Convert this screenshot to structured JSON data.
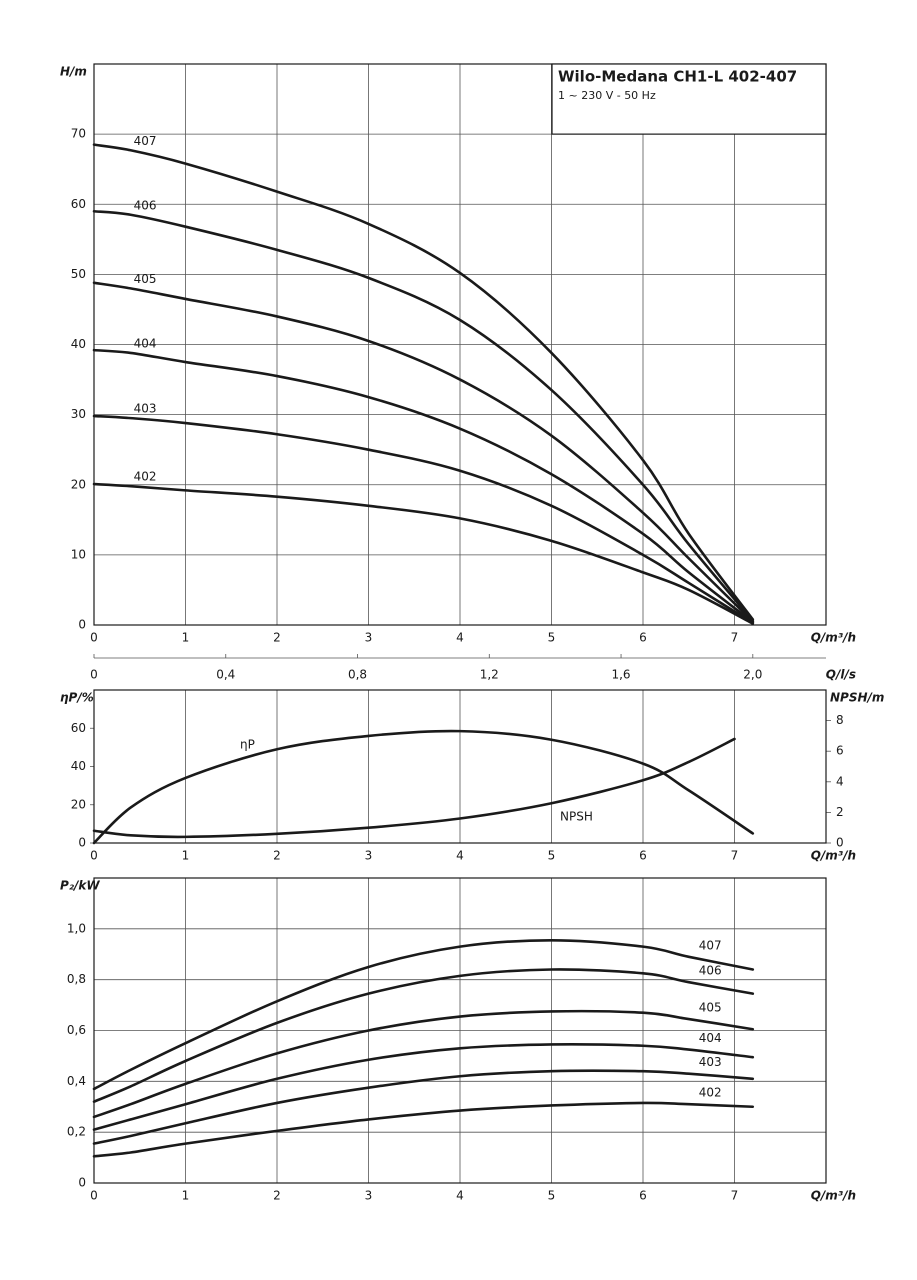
{
  "chart_data": [
    {
      "type": "line",
      "title": "Wilo-Medana CH1-L 402-407",
      "subtitle": "1 ~ 230 V - 50 Hz",
      "ylabel": "H/m",
      "xlabel": "Q/m³/h",
      "x2label": "Q/l/s",
      "xlim": [
        0,
        8
      ],
      "xticks": [
        0,
        1,
        2,
        3,
        4,
        5,
        6,
        7
      ],
      "x2lim": [
        0,
        2.2222
      ],
      "x2ticks": [
        0,
        {
          "value": 0.4,
          "label": "0,4"
        },
        {
          "value": 0.8,
          "label": "0,8"
        },
        {
          "value": 1.2,
          "label": "1,2"
        },
        {
          "value": 1.6,
          "label": "1,6"
        },
        {
          "value": 2.0,
          "label": "2,0"
        }
      ],
      "ylim": [
        0,
        80
      ],
      "yticks": [
        0,
        10,
        20,
        30,
        40,
        50,
        60,
        70
      ],
      "grid": "both",
      "color": "#1a1a1a",
      "series": [
        {
          "name": "407",
          "x": [
            0,
            0.4,
            1,
            2,
            3,
            4,
            5,
            6,
            6.5,
            7.2
          ],
          "values": [
            68.5,
            67.7,
            65.8,
            61.8,
            57.2,
            50.2,
            38.8,
            23.5,
            13,
            0.8
          ]
        },
        {
          "name": "406",
          "x": [
            0,
            0.4,
            1,
            2,
            3,
            4,
            5,
            6,
            6.5,
            7.2
          ],
          "values": [
            59,
            58.5,
            56.8,
            53.5,
            49.5,
            43.5,
            33.5,
            20,
            11.5,
            0.6
          ]
        },
        {
          "name": "405",
          "x": [
            0,
            0.4,
            1,
            2,
            3,
            4,
            5,
            6,
            6.5,
            7.2
          ],
          "values": [
            48.8,
            48,
            46.5,
            44,
            40.5,
            35,
            27,
            16,
            9.5,
            0.5
          ]
        },
        {
          "name": "404",
          "x": [
            0,
            0.4,
            1,
            2,
            3,
            4,
            5,
            6,
            6.5,
            7.2
          ],
          "values": [
            39.2,
            38.8,
            37.5,
            35.5,
            32.5,
            28,
            21.5,
            13,
            7.5,
            0.4
          ]
        },
        {
          "name": "403",
          "x": [
            0,
            0.4,
            1,
            2,
            3,
            4,
            5,
            6,
            6.5,
            7.2
          ],
          "values": [
            29.8,
            29.5,
            28.8,
            27.2,
            25,
            22,
            17,
            10,
            6,
            0.3
          ]
        },
        {
          "name": "402",
          "x": [
            0,
            0.4,
            1,
            2,
            3,
            4,
            5,
            6,
            6.5,
            7.2
          ],
          "values": [
            20.1,
            19.8,
            19.2,
            18.3,
            17,
            15.2,
            12,
            7.5,
            5,
            0.2
          ]
        }
      ]
    },
    {
      "type": "line",
      "ylabel": "ηP/%",
      "y2label": "NPSH/m",
      "xlabel": "Q/m³/h",
      "xlim": [
        0,
        8
      ],
      "xticks": [
        0,
        1,
        2,
        3,
        4,
        5,
        6,
        7
      ],
      "ylim": [
        0,
        80
      ],
      "yticks": [
        0,
        20,
        40,
        60
      ],
      "y2lim": [
        0,
        10
      ],
      "y2ticks": [
        0,
        2,
        4,
        6,
        8
      ],
      "grid": "x",
      "color": "#1a1a1a",
      "series": [
        {
          "name": "ηP",
          "x": [
            0,
            0.4,
            1,
            2,
            3,
            4,
            5,
            6,
            6.5,
            7.2
          ],
          "values": [
            0,
            18.5,
            34,
            49,
            56,
            58.5,
            54,
            41.5,
            27.5,
            5
          ]
        },
        {
          "name": "NPSH",
          "axis": "y2",
          "x": [
            0,
            0.4,
            1,
            2,
            3,
            4,
            5,
            6,
            6.5,
            7
          ],
          "values": [
            0.8,
            0.5,
            0.4,
            0.6,
            1.0,
            1.6,
            2.6,
            4.1,
            5.3,
            6.8
          ]
        }
      ]
    },
    {
      "type": "line",
      "ylabel": "P₂/kW",
      "xlabel": "Q/m³/h",
      "xlim": [
        0,
        8
      ],
      "xticks": [
        0,
        1,
        2,
        3,
        4,
        5,
        6,
        7
      ],
      "ylim": [
        0,
        1.2
      ],
      "yticks": [
        0,
        {
          "value": 0.2,
          "label": "0,2"
        },
        {
          "value": 0.4,
          "label": "0,4"
        },
        {
          "value": 0.6,
          "label": "0,6"
        },
        {
          "value": 0.8,
          "label": "0,8"
        },
        {
          "value": 1.0,
          "label": "1,0"
        }
      ],
      "grid": "both",
      "color": "#1a1a1a",
      "series": [
        {
          "name": "407",
          "x": [
            0,
            0.4,
            1,
            2,
            3,
            4,
            5,
            6,
            6.5,
            7.2
          ],
          "values": [
            0.37,
            0.445,
            0.55,
            0.715,
            0.85,
            0.93,
            0.955,
            0.93,
            0.89,
            0.84
          ]
        },
        {
          "name": "406",
          "x": [
            0,
            0.4,
            1,
            2,
            3,
            4,
            5,
            6,
            6.5,
            7.2
          ],
          "values": [
            0.32,
            0.38,
            0.48,
            0.63,
            0.745,
            0.815,
            0.84,
            0.825,
            0.79,
            0.745
          ]
        },
        {
          "name": "405",
          "x": [
            0,
            0.4,
            1,
            2,
            3,
            4,
            5,
            6,
            6.5,
            7.2
          ],
          "values": [
            0.26,
            0.31,
            0.39,
            0.51,
            0.6,
            0.655,
            0.675,
            0.67,
            0.645,
            0.605
          ]
        },
        {
          "name": "404",
          "x": [
            0,
            0.4,
            1,
            2,
            3,
            4,
            5,
            6,
            6.5,
            7.2
          ],
          "values": [
            0.21,
            0.25,
            0.31,
            0.41,
            0.485,
            0.53,
            0.545,
            0.54,
            0.525,
            0.495
          ]
        },
        {
          "name": "403",
          "x": [
            0,
            0.4,
            1,
            2,
            3,
            4,
            5,
            6,
            6.5,
            7.2
          ],
          "values": [
            0.155,
            0.185,
            0.235,
            0.315,
            0.375,
            0.42,
            0.44,
            0.44,
            0.43,
            0.41
          ]
        },
        {
          "name": "402",
          "x": [
            0,
            0.4,
            1,
            2,
            3,
            4,
            5,
            6,
            6.5,
            7.2
          ],
          "values": [
            0.105,
            0.12,
            0.155,
            0.205,
            0.25,
            0.285,
            0.305,
            0.315,
            0.31,
            0.3
          ]
        }
      ]
    }
  ]
}
